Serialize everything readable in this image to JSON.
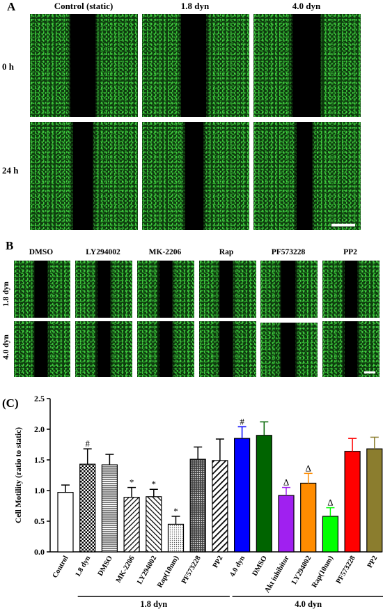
{
  "panel_a": {
    "letter": "A",
    "columns": [
      "Control (static)",
      "1.8 dyn",
      "4.0 dyn"
    ],
    "rows": [
      "0 h",
      "24 h"
    ]
  },
  "panel_b": {
    "letter": "B",
    "columns": [
      "DMSO",
      "LY294002",
      "MK-2206",
      "Rap",
      "PF573228",
      "PP2"
    ],
    "rows": [
      "1.8 dyn",
      "4.0 dyn"
    ]
  },
  "panel_c": {
    "letter": "(C)"
  },
  "chart_data": {
    "type": "bar",
    "ylabel": "Cell Motility (ratio to static)",
    "ylim": [
      0.0,
      2.5
    ],
    "yticks": [
      "0.0",
      "0.5",
      "1.0",
      "1.5",
      "2.0",
      "2.5"
    ],
    "categories": [
      "Control",
      "1.8 dyn",
      "DMSO",
      "MK-2206",
      "LY294002",
      "Rap(10nm)",
      "PF573228",
      "PP2",
      "4.0 dyn",
      "DMSO",
      "Akt inhibitor",
      "LY294002",
      "Rap(10nm)",
      "PF573228",
      "PP2"
    ],
    "values": [
      0.97,
      1.43,
      1.42,
      0.89,
      0.9,
      0.45,
      1.51,
      1.49,
      1.85,
      1.9,
      0.92,
      1.12,
      0.58,
      1.64,
      1.68
    ],
    "errors": [
      0.12,
      0.25,
      0.17,
      0.16,
      0.12,
      0.13,
      0.2,
      0.35,
      0.19,
      0.22,
      0.13,
      0.16,
      0.14,
      0.21,
      0.19
    ],
    "annotations": [
      "",
      "#",
      "",
      "*",
      "*",
      "*",
      "",
      "",
      "#",
      "",
      "Δ",
      "Δ",
      "Δ",
      "",
      ""
    ],
    "bar_colors": [
      "#ffffff",
      "#ffffff",
      "#ffffff",
      "#ffffff",
      "#ffffff",
      "#ffffff",
      "#ffffff",
      "#ffffff",
      "#0000ff",
      "#006400",
      "#a020f0",
      "#ff8c00",
      "#00ff00",
      "#ff0000",
      "#8b7d2e"
    ],
    "group_labels": [
      "1.8 dyn",
      "4.0 dyn"
    ],
    "grid": false
  }
}
